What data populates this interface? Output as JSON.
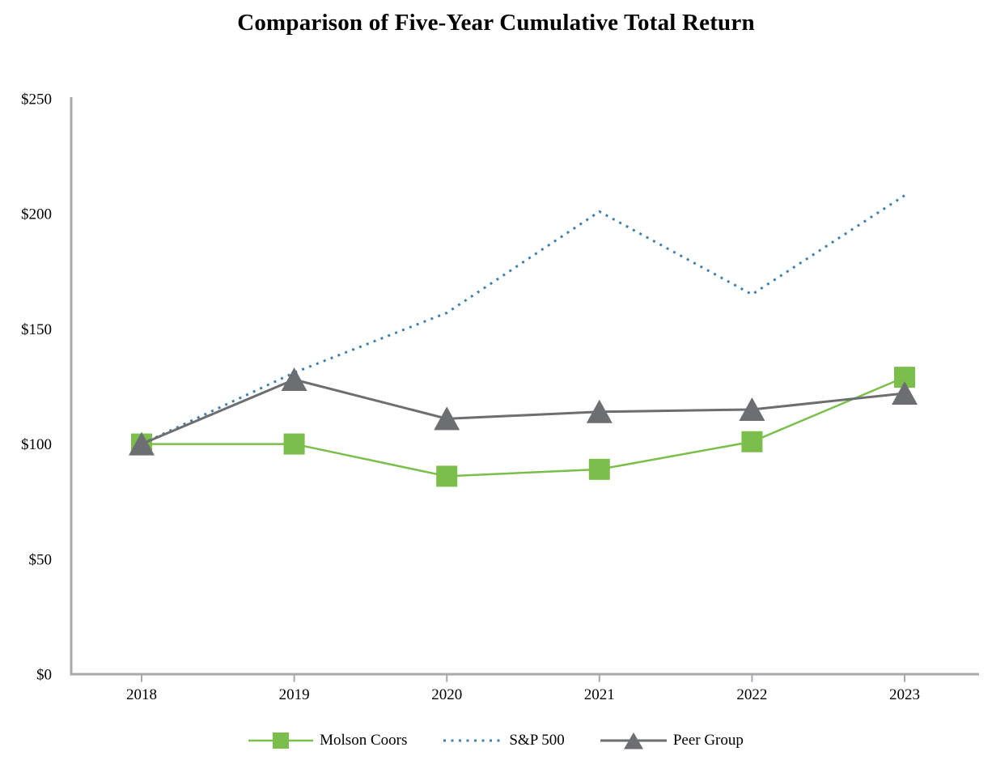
{
  "title": "Comparison of Five-Year Cumulative Total Return",
  "chart_data": {
    "type": "line",
    "categories": [
      "2018",
      "2019",
      "2020",
      "2021",
      "2022",
      "2023"
    ],
    "series": [
      {
        "name": "Molson Coors",
        "values": [
          100,
          100,
          86,
          89,
          101,
          129
        ],
        "color": "#7CBE4B",
        "marker": "square",
        "line_style": "solid"
      },
      {
        "name": "S&P 500",
        "values": [
          100,
          131,
          157,
          201,
          165,
          208
        ],
        "color": "#4281AC",
        "marker": "none",
        "line_style": "dotted"
      },
      {
        "name": "Peer Group",
        "values": [
          100,
          128,
          111,
          114,
          115,
          122
        ],
        "color": "#6D6E71",
        "marker": "triangle",
        "line_style": "solid"
      }
    ],
    "ylabel": "",
    "xlabel": "",
    "ylim": [
      0,
      250
    ],
    "y_tick_values": [
      0,
      50,
      100,
      150,
      200,
      250
    ],
    "y_tick_labels": [
      "$0",
      "$50",
      "$100",
      "$150",
      "$200",
      "$250"
    ],
    "grid": false,
    "legend_position": "bottom",
    "axis_color": "#A7A9AC"
  }
}
